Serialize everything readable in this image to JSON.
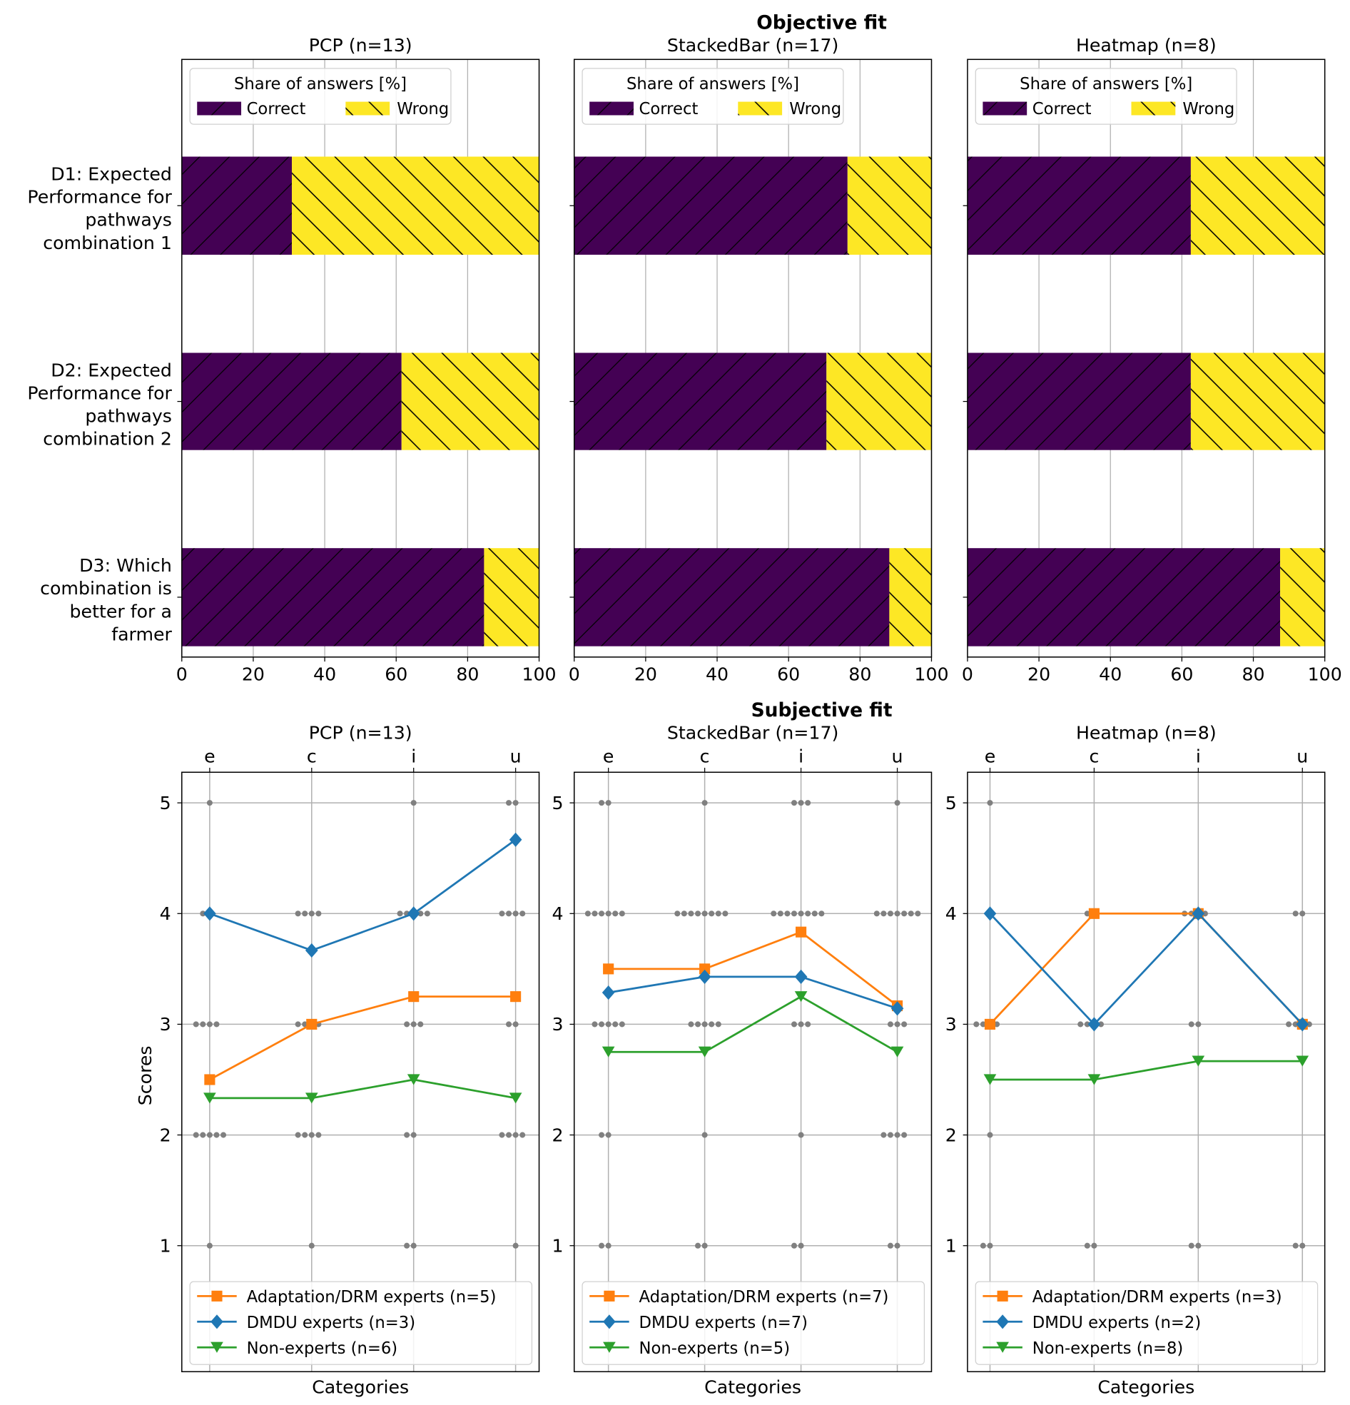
{
  "colors": {
    "correct": "#440154",
    "wrong": "#fde725",
    "adaptation": "#ff7f0e",
    "dmdu": "#1f77b4",
    "non_experts": "#2ca02c",
    "dots": "#808080",
    "grid": "#b0b0b0"
  },
  "chart_data": [
    {
      "type": "bar",
      "section_title": "Objective fit",
      "stacked": true,
      "orientation": "horizontal",
      "legend": {
        "title": "Share of answers [%]",
        "entries": [
          "Correct",
          "Wrong"
        ],
        "placement": "top-left"
      },
      "categories": [
        [
          "D1: Expected",
          "Performance for",
          "pathways",
          "combination 1"
        ],
        [
          "D2: Expected",
          "Performance for",
          "pathways",
          "combination 2"
        ],
        [
          "D3: Which",
          "combination is",
          "better for a",
          "farmer"
        ]
      ],
      "xlim": [
        0,
        100
      ],
      "xticks": [
        "0",
        "20",
        "40",
        "60",
        "80",
        "100"
      ],
      "grid": true,
      "panels": [
        {
          "title": "PCP (n=13)",
          "series": [
            {
              "name": "Correct",
              "values": [
                30.8,
                61.5,
                84.6
              ]
            },
            {
              "name": "Wrong",
              "values": [
                69.2,
                38.5,
                15.4
              ]
            }
          ]
        },
        {
          "title": "StackedBar (n=17)",
          "series": [
            {
              "name": "Correct",
              "values": [
                76.5,
                70.6,
                88.2
              ]
            },
            {
              "name": "Wrong",
              "values": [
                23.5,
                29.4,
                11.8
              ]
            }
          ]
        },
        {
          "title": "Heatmap (n=8)",
          "series": [
            {
              "name": "Correct",
              "values": [
                62.5,
                62.5,
                87.5
              ]
            },
            {
              "name": "Wrong",
              "values": [
                37.5,
                37.5,
                12.5
              ]
            }
          ]
        }
      ]
    },
    {
      "type": "line",
      "section_title": "Subjective fit",
      "categories": [
        "e",
        "c",
        "i",
        "u"
      ],
      "xlabel": "Categories",
      "ylabel": "Scores",
      "yticks": [
        "1",
        "2",
        "3",
        "4",
        "5"
      ],
      "ylim": [
        -0.14,
        5.28
      ],
      "grid": true,
      "legend_placement": "bottom-left",
      "panels": [
        {
          "title": "PCP (n=13)",
          "series": [
            {
              "name": "Adaptation/DRM experts (n=5)",
              "marker": "square",
              "values": [
                2.5,
                3.0,
                3.25,
                3.25
              ]
            },
            {
              "name": "DMDU experts (n=3)",
              "marker": "diamond",
              "values": [
                4.0,
                3.667,
                4.0,
                4.667
              ]
            },
            {
              "name": "Non-experts  (n=6)",
              "marker": "triangle-down",
              "values": [
                2.333,
                2.333,
                2.5,
                2.333
              ]
            }
          ],
          "response_counts": {
            "scores": [
              5,
              4,
              3,
              2,
              1
            ],
            "e": [
              1,
              2,
              4,
              5,
              1
            ],
            "c": [
              0,
              4,
              4,
              4,
              1
            ],
            "i": [
              1,
              5,
              3,
              2,
              2
            ],
            "u": [
              2,
              4,
              2,
              4,
              1
            ]
          }
        },
        {
          "title": "StackedBar (n=17)",
          "series": [
            {
              "name": "Adaptation/DRM experts (n=7)",
              "marker": "square",
              "values": [
                3.5,
                3.5,
                3.833,
                3.167
              ]
            },
            {
              "name": "DMDU experts (n=7)",
              "marker": "diamond",
              "values": [
                3.286,
                3.429,
                3.429,
                3.143
              ]
            },
            {
              "name": "Non-experts  (n=5)",
              "marker": "triangle-down",
              "values": [
                2.75,
                2.75,
                3.25,
                2.75
              ]
            }
          ],
          "response_counts": {
            "scores": [
              5,
              4,
              3,
              2,
              1
            ],
            "e": [
              2,
              6,
              5,
              2,
              2
            ],
            "c": [
              1,
              8,
              5,
              1,
              2
            ],
            "i": [
              3,
              8,
              3,
              1,
              2
            ],
            "u": [
              1,
              7,
              3,
              4,
              2
            ]
          }
        },
        {
          "title": "Heatmap (n=8)",
          "series": [
            {
              "name": "Adaptation/DRM experts (n=3)",
              "marker": "square",
              "values": [
                3.0,
                4.0,
                4.0,
                3.0
              ]
            },
            {
              "name": "DMDU experts (n=2)",
              "marker": "diamond",
              "values": [
                4.0,
                3.0,
                4.0,
                3.0
              ]
            },
            {
              "name": "Non-experts  (n=8)",
              "marker": "triangle-down",
              "values": [
                2.5,
                2.5,
                2.667,
                2.667
              ]
            }
          ],
          "response_counts": {
            "scores": [
              5,
              4,
              3,
              2,
              1
            ],
            "e": [
              1,
              0,
              4,
              1,
              2
            ],
            "c": [
              0,
              2,
              4,
              0,
              2
            ],
            "i": [
              0,
              4,
              2,
              0,
              2
            ],
            "u": [
              0,
              2,
              4,
              0,
              2
            ]
          }
        }
      ]
    }
  ]
}
